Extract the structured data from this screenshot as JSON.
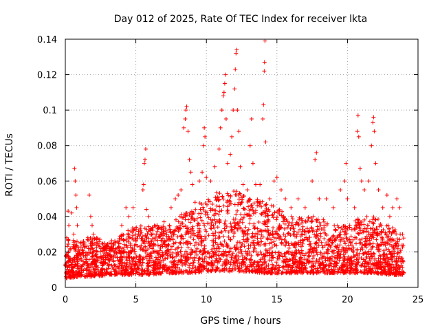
{
  "chart_data": {
    "type": "scatter",
    "title": "Day 012 of 2025, Rate Of TEC Index for receiver lkta",
    "xlabel": "GPS time / hours",
    "ylabel": "ROTI / TECUs",
    "xlim": [
      0,
      25
    ],
    "ylim": [
      0,
      0.14
    ],
    "x_ticks": [
      "0",
      "5",
      "10",
      "15",
      "20",
      "25"
    ],
    "y_ticks": [
      "0",
      "0.02",
      "0.04",
      "0.06",
      "0.08",
      "0.1",
      "0.12",
      "0.14"
    ],
    "grid": true,
    "legend": "none",
    "marker": "+",
    "series_color": "#ff0000",
    "series": [
      {
        "name": "",
        "points": [
          [
            0.05,
            0.012
          ],
          [
            0.1,
            0.028
          ],
          [
            0.15,
            0.018
          ],
          [
            0.2,
            0.043
          ],
          [
            0.25,
            0.035
          ],
          [
            0.35,
            0.022
          ],
          [
            0.45,
            0.042
          ],
          [
            0.5,
            0.015
          ],
          [
            0.6,
            0.03
          ],
          [
            0.65,
            0.067
          ],
          [
            0.7,
            0.06
          ],
          [
            0.75,
            0.052
          ],
          [
            0.8,
            0.045
          ],
          [
            0.85,
            0.035
          ],
          [
            1.0,
            0.02
          ],
          [
            1.3,
            0.025
          ],
          [
            1.6,
            0.028
          ],
          [
            1.7,
            0.052
          ],
          [
            1.8,
            0.04
          ],
          [
            1.9,
            0.035
          ],
          [
            2.0,
            0.03
          ],
          [
            2.3,
            0.02
          ],
          [
            2.6,
            0.025
          ],
          [
            3.0,
            0.018
          ],
          [
            3.5,
            0.02
          ],
          [
            4.0,
            0.035
          ],
          [
            4.3,
            0.045
          ],
          [
            4.5,
            0.04
          ],
          [
            4.8,
            0.045
          ],
          [
            5.0,
            0.03
          ],
          [
            5.3,
            0.033
          ],
          [
            5.5,
            0.055
          ],
          [
            5.55,
            0.058
          ],
          [
            5.6,
            0.07
          ],
          [
            5.65,
            0.072
          ],
          [
            5.7,
            0.078
          ],
          [
            5.75,
            0.044
          ],
          [
            5.9,
            0.04
          ],
          [
            6.5,
            0.035
          ],
          [
            7.0,
            0.037
          ],
          [
            7.5,
            0.045
          ],
          [
            7.8,
            0.05
          ],
          [
            8.0,
            0.052
          ],
          [
            8.2,
            0.055
          ],
          [
            8.4,
            0.09
          ],
          [
            8.5,
            0.095
          ],
          [
            8.55,
            0.1
          ],
          [
            8.6,
            0.102
          ],
          [
            8.7,
            0.088
          ],
          [
            8.8,
            0.072
          ],
          [
            8.9,
            0.065
          ],
          [
            9.0,
            0.058
          ],
          [
            9.2,
            0.048
          ],
          [
            9.5,
            0.06
          ],
          [
            9.7,
            0.065
          ],
          [
            9.8,
            0.08
          ],
          [
            9.85,
            0.09
          ],
          [
            9.9,
            0.085
          ],
          [
            10.0,
            0.062
          ],
          [
            10.3,
            0.06
          ],
          [
            10.6,
            0.068
          ],
          [
            10.9,
            0.078
          ],
          [
            11.0,
            0.09
          ],
          [
            11.1,
            0.1
          ],
          [
            11.2,
            0.108
          ],
          [
            11.25,
            0.11
          ],
          [
            11.3,
            0.115
          ],
          [
            11.35,
            0.12
          ],
          [
            11.4,
            0.095
          ],
          [
            11.5,
            0.07
          ],
          [
            11.7,
            0.075
          ],
          [
            11.8,
            0.085
          ],
          [
            11.9,
            0.1
          ],
          [
            12.0,
            0.112
          ],
          [
            12.05,
            0.123
          ],
          [
            12.1,
            0.132
          ],
          [
            12.15,
            0.134
          ],
          [
            12.2,
            0.1
          ],
          [
            12.3,
            0.088
          ],
          [
            12.4,
            0.068
          ],
          [
            12.6,
            0.058
          ],
          [
            12.9,
            0.055
          ],
          [
            13.1,
            0.08
          ],
          [
            13.2,
            0.095
          ],
          [
            13.3,
            0.07
          ],
          [
            13.5,
            0.058
          ],
          [
            13.8,
            0.058
          ],
          [
            14.0,
            0.095
          ],
          [
            14.05,
            0.103
          ],
          [
            14.1,
            0.122
          ],
          [
            14.12,
            0.127
          ],
          [
            14.15,
            0.139
          ],
          [
            14.2,
            0.082
          ],
          [
            14.5,
            0.05
          ],
          [
            14.8,
            0.06
          ],
          [
            15.0,
            0.062
          ],
          [
            15.3,
            0.055
          ],
          [
            15.6,
            0.05
          ],
          [
            16.0,
            0.045
          ],
          [
            16.5,
            0.05
          ],
          [
            17.0,
            0.045
          ],
          [
            17.5,
            0.06
          ],
          [
            17.7,
            0.072
          ],
          [
            17.8,
            0.076
          ],
          [
            18.0,
            0.05
          ],
          [
            18.5,
            0.05
          ],
          [
            19.0,
            0.045
          ],
          [
            19.5,
            0.055
          ],
          [
            19.8,
            0.06
          ],
          [
            19.9,
            0.07
          ],
          [
            20.0,
            0.05
          ],
          [
            20.5,
            0.045
          ],
          [
            20.7,
            0.088
          ],
          [
            20.75,
            0.097
          ],
          [
            20.8,
            0.085
          ],
          [
            20.9,
            0.067
          ],
          [
            21.0,
            0.06
          ],
          [
            21.2,
            0.055
          ],
          [
            21.5,
            0.06
          ],
          [
            21.7,
            0.08
          ],
          [
            21.8,
            0.093
          ],
          [
            21.85,
            0.096
          ],
          [
            21.9,
            0.088
          ],
          [
            22.0,
            0.07
          ],
          [
            22.2,
            0.055
          ],
          [
            22.5,
            0.045
          ],
          [
            22.8,
            0.052
          ],
          [
            23.0,
            0.04
          ],
          [
            23.2,
            0.045
          ],
          [
            23.5,
            0.05
          ],
          [
            23.7,
            0.045
          ],
          [
            23.9,
            0.03
          ]
        ]
      }
    ],
    "dense_band": {
      "description_of_envelope": "points shown as typical ROTI levels vs time",
      "x": [
        0,
        1,
        2,
        3,
        4,
        5,
        6,
        7,
        8,
        9,
        10,
        11,
        12,
        13,
        14,
        15,
        16,
        17,
        18,
        19,
        20,
        21,
        22,
        23,
        24
      ],
      "low": [
        0.005,
        0.006,
        0.006,
        0.007,
        0.007,
        0.007,
        0.007,
        0.008,
        0.008,
        0.008,
        0.009,
        0.009,
        0.009,
        0.009,
        0.008,
        0.008,
        0.008,
        0.008,
        0.008,
        0.008,
        0.008,
        0.008,
        0.008,
        0.007,
        0.007
      ],
      "high": [
        0.03,
        0.025,
        0.03,
        0.025,
        0.03,
        0.035,
        0.035,
        0.035,
        0.04,
        0.045,
        0.05,
        0.055,
        0.055,
        0.05,
        0.05,
        0.045,
        0.04,
        0.04,
        0.04,
        0.035,
        0.035,
        0.04,
        0.04,
        0.035,
        0.03
      ]
    }
  }
}
